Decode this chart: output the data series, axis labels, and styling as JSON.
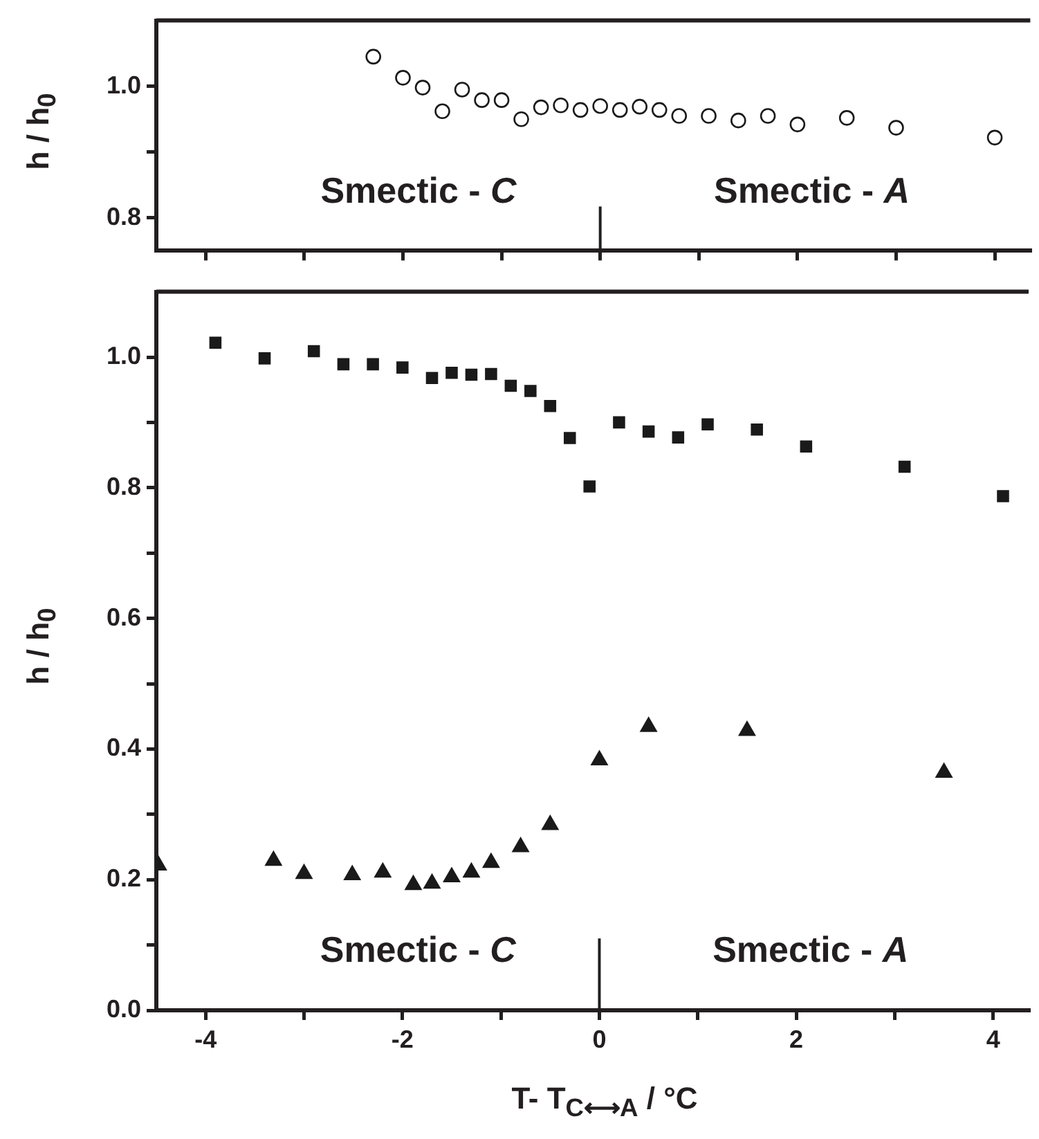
{
  "chart_data": [
    {
      "type": "scatter",
      "ylabel": "h / h$_{0}$",
      "marker": "circle",
      "color": "#1a1a1a",
      "tick_labels": "y",
      "x": [
        -2.3,
        -2.0,
        -1.8,
        -1.6,
        -1.4,
        -1.2,
        -1.0,
        -0.8,
        -0.6,
        -0.4,
        -0.2,
        0.0,
        0.2,
        0.4,
        0.6,
        0.8,
        1.1,
        1.4,
        1.7,
        2.0,
        2.5,
        3.0,
        4.0
      ],
      "values": [
        1.045,
        1.013,
        0.998,
        0.962,
        0.995,
        0.979,
        0.979,
        0.95,
        0.968,
        0.971,
        0.964,
        0.97,
        0.964,
        0.969,
        0.964,
        0.955,
        0.955,
        0.948,
        0.955,
        0.942,
        0.952,
        0.937,
        0.922
      ],
      "xlim": [
        -4.5,
        4.36
      ],
      "xticks": [
        -4,
        {
          "value": -3,
          "label": null
        },
        -2,
        {
          "value": -1,
          "label": null
        },
        0,
        {
          "value": 1,
          "label": null
        },
        2,
        {
          "value": 3,
          "label": null
        },
        4
      ],
      "ylim": [
        0.75,
        1.1
      ],
      "yticks": [
        0.8,
        {
          "value": 0.9,
          "label": null
        },
        {
          "value": 1,
          "label": "1.0"
        }
      ],
      "ref_lines": [
        {
          "axis": "x",
          "value": 0
        }
      ],
      "annotations": [
        "Smectic - C",
        "Smectic - A"
      ]
    },
    {
      "type": "scatter",
      "xlabel": "T- T$_{C⟷A}$ / °C",
      "ylabel": "h / h$_{0}$",
      "series": [
        {
          "marker": "square",
          "color": "#1a1a1a",
          "x": [
            -3.9,
            -3.4,
            -2.9,
            -2.6,
            -2.3,
            -2.0,
            -1.7,
            -1.5,
            -1.3,
            -1.1,
            -0.9,
            -0.7,
            -0.5,
            -0.3,
            -0.1,
            0.2,
            0.5,
            0.8,
            1.1,
            1.6,
            2.1,
            3.1,
            4.1
          ],
          "values": [
            1.022,
            0.998,
            1.009,
            0.989,
            0.989,
            0.984,
            0.968,
            0.976,
            0.973,
            0.974,
            0.956,
            0.948,
            0.925,
            0.876,
            0.802,
            0.9,
            0.886,
            0.877,
            0.897,
            0.889,
            0.863,
            0.832,
            0.787
          ]
        },
        {
          "marker": "triangle",
          "color": "#1a1a1a",
          "x": [
            -4.48,
            -3.31,
            -3.0,
            -2.51,
            -2.2,
            -1.89,
            -1.7,
            -1.5,
            -1.3,
            -1.1,
            -0.8,
            -0.5,
            0.0,
            0.5,
            1.5,
            3.5
          ],
          "values": [
            0.222,
            0.229,
            0.209,
            0.207,
            0.211,
            0.192,
            0.194,
            0.204,
            0.211,
            0.226,
            0.25,
            0.284,
            0.383,
            0.434,
            0.428,
            0.364
          ]
        }
      ],
      "xlim": [
        -4.5,
        4.36
      ],
      "xticks": [
        -4,
        {
          "value": -3,
          "label": null
        },
        -2,
        {
          "value": -1,
          "label": null
        },
        0,
        {
          "value": 1,
          "label": null
        },
        2,
        {
          "value": 3,
          "label": null
        },
        4
      ],
      "ylim": [
        0,
        1.1
      ],
      "yticks": [
        {
          "value": 0,
          "label": "0.0"
        },
        {
          "value": 0.1,
          "label": null
        },
        0.2,
        {
          "value": 0.3,
          "label": null
        },
        0.4,
        {
          "value": 0.5,
          "label": null
        },
        0.6,
        {
          "value": 0.7,
          "label": null
        },
        0.8,
        {
          "value": 0.9,
          "label": null
        },
        {
          "value": 1,
          "label": "1.0"
        }
      ],
      "ref_lines": [
        {
          "axis": "x",
          "value": 0
        }
      ],
      "annotations": [
        "Smectic - C",
        "Smectic - A"
      ]
    }
  ]
}
